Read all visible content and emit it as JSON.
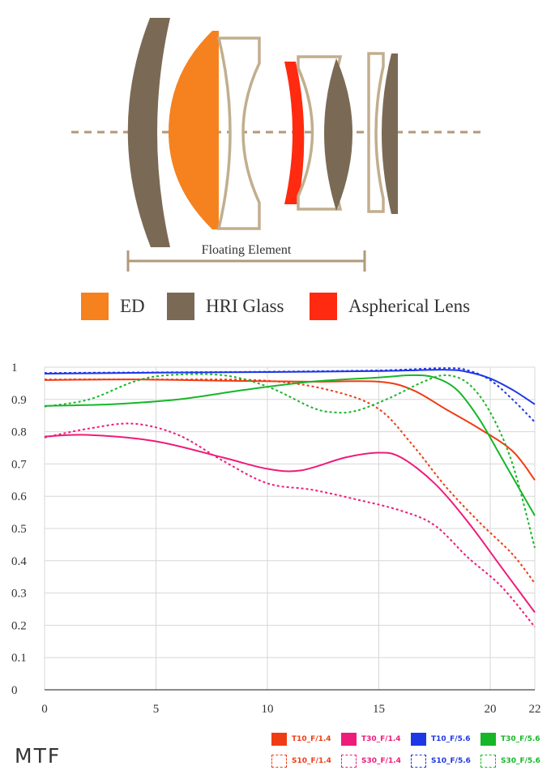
{
  "diagram": {
    "floating_label": "Floating Element",
    "colors": {
      "ed": "#f5821f",
      "hri": "#7a6a55",
      "aspherical": "#ff2a0f",
      "clear_outline": "#c2ae8e",
      "axis": "#b09a78"
    }
  },
  "legend_top": [
    {
      "label": "ED",
      "color": "#f5821f"
    },
    {
      "label": "HRI Glass",
      "color": "#7a6a55"
    },
    {
      "label": "Aspherical Lens",
      "color": "#ff2a0f"
    }
  ],
  "mtf_title": "MTF",
  "chart_data": {
    "type": "line",
    "title": "MTF",
    "xlabel": "",
    "ylabel": "",
    "xlim": [
      0,
      22
    ],
    "ylim": [
      0,
      1
    ],
    "grid": true,
    "x_ticks": [
      "0",
      "5",
      "10",
      "15",
      "20",
      "22"
    ],
    "x_tick_values": [
      0,
      5,
      10,
      15,
      20,
      22
    ],
    "y_ticks": [
      "0",
      "0.1",
      "0.2",
      "0.3",
      "0.4",
      "0.5",
      "0.6",
      "0.7",
      "0.8",
      "0.9",
      "1"
    ],
    "series": [
      {
        "name": "T10_F/1.4",
        "color": "#f03c14",
        "dashed": false,
        "points": [
          [
            0,
            0.96
          ],
          [
            4,
            0.962
          ],
          [
            8,
            0.958
          ],
          [
            12,
            0.955
          ],
          [
            15,
            0.955
          ],
          [
            16.5,
            0.93
          ],
          [
            18,
            0.87
          ],
          [
            19.5,
            0.81
          ],
          [
            21,
            0.74
          ],
          [
            22,
            0.65
          ]
        ]
      },
      {
        "name": "S10_F/1.4",
        "color": "#f03c14",
        "dashed": true,
        "points": [
          [
            0,
            0.962
          ],
          [
            5,
            0.962
          ],
          [
            10,
            0.958
          ],
          [
            13,
            0.925
          ],
          [
            15,
            0.87
          ],
          [
            16.5,
            0.76
          ],
          [
            18,
            0.63
          ],
          [
            19.5,
            0.52
          ],
          [
            21,
            0.42
          ],
          [
            22,
            0.33
          ]
        ]
      },
      {
        "name": "T30_F/1.4",
        "color": "#ee1c7a",
        "dashed": false,
        "points": [
          [
            0,
            0.785
          ],
          [
            2,
            0.79
          ],
          [
            5,
            0.77
          ],
          [
            8,
            0.72
          ],
          [
            10,
            0.685
          ],
          [
            11.5,
            0.68
          ],
          [
            13.5,
            0.72
          ],
          [
            15,
            0.735
          ],
          [
            16,
            0.72
          ],
          [
            17.5,
            0.64
          ],
          [
            19,
            0.52
          ],
          [
            20.5,
            0.38
          ],
          [
            22,
            0.24
          ]
        ]
      },
      {
        "name": "S30_F/1.4",
        "color": "#ee1c7a",
        "dashed": true,
        "points": [
          [
            0,
            0.782
          ],
          [
            2,
            0.81
          ],
          [
            4,
            0.825
          ],
          [
            6,
            0.79
          ],
          [
            8,
            0.71
          ],
          [
            10,
            0.64
          ],
          [
            12,
            0.62
          ],
          [
            14,
            0.59
          ],
          [
            16,
            0.555
          ],
          [
            17.5,
            0.51
          ],
          [
            19,
            0.41
          ],
          [
            20.5,
            0.32
          ],
          [
            22,
            0.195
          ]
        ]
      },
      {
        "name": "T10_F/5.6",
        "color": "#1e37e6",
        "dashed": false,
        "points": [
          [
            0,
            0.98
          ],
          [
            5,
            0.983
          ],
          [
            10,
            0.985
          ],
          [
            15,
            0.988
          ],
          [
            18,
            0.992
          ],
          [
            19,
            0.985
          ],
          [
            20,
            0.965
          ],
          [
            21,
            0.93
          ],
          [
            22,
            0.885
          ]
        ]
      },
      {
        "name": "S10_F/5.6",
        "color": "#1e37e6",
        "dashed": true,
        "points": [
          [
            0,
            0.982
          ],
          [
            5,
            0.984
          ],
          [
            10,
            0.986
          ],
          [
            15,
            0.99
          ],
          [
            18,
            0.997
          ],
          [
            19,
            0.99
          ],
          [
            20,
            0.96
          ],
          [
            21,
            0.9
          ],
          [
            22,
            0.83
          ]
        ]
      },
      {
        "name": "T30_F/5.6",
        "color": "#17b629",
        "dashed": false,
        "points": [
          [
            0,
            0.88
          ],
          [
            3,
            0.885
          ],
          [
            6,
            0.9
          ],
          [
            9,
            0.93
          ],
          [
            12,
            0.955
          ],
          [
            15,
            0.968
          ],
          [
            16.5,
            0.975
          ],
          [
            17.5,
            0.968
          ],
          [
            18.5,
            0.93
          ],
          [
            19.5,
            0.84
          ],
          [
            20.5,
            0.72
          ],
          [
            21.5,
            0.6
          ],
          [
            22,
            0.54
          ]
        ]
      },
      {
        "name": "S30_F/5.6",
        "color": "#17b629",
        "dashed": true,
        "points": [
          [
            0,
            0.878
          ],
          [
            2,
            0.9
          ],
          [
            4,
            0.955
          ],
          [
            5.5,
            0.975
          ],
          [
            8,
            0.975
          ],
          [
            10,
            0.94
          ],
          [
            12,
            0.875
          ],
          [
            13,
            0.86
          ],
          [
            14,
            0.865
          ],
          [
            15.5,
            0.905
          ],
          [
            17,
            0.955
          ],
          [
            18,
            0.975
          ],
          [
            19,
            0.95
          ],
          [
            20,
            0.86
          ],
          [
            21,
            0.7
          ],
          [
            22,
            0.44
          ]
        ]
      }
    ]
  }
}
